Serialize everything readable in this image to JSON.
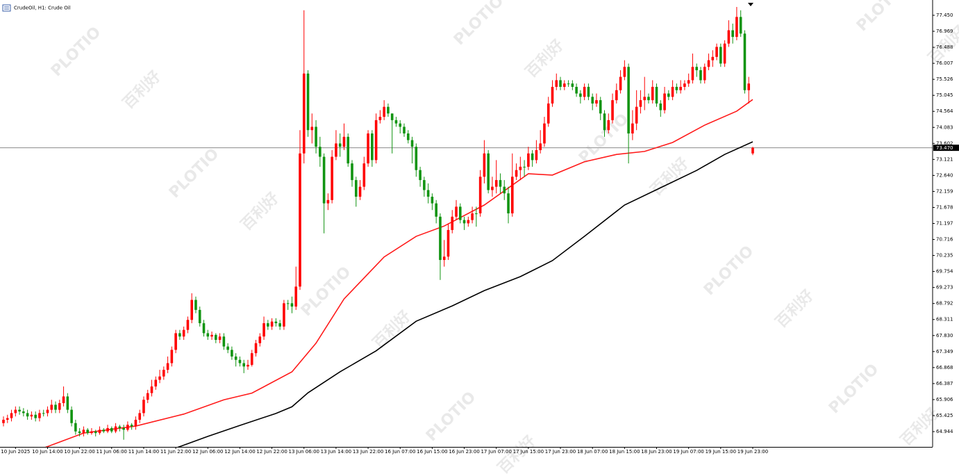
{
  "chart_data": {
    "type": "candlestick",
    "symbol_label": "CrudeOil, H1:  Crude Oil",
    "watermark": [
      "PLOTIO",
      "百利好"
    ],
    "up_color": "#ff0000",
    "down_color": "#119411",
    "ylim": [
      64.485,
      77.909
    ],
    "yticks": [
      {
        "value": 77.45,
        "label": "77.450"
      },
      76.969,
      76.488,
      76.007,
      75.526,
      75.045,
      74.564,
      74.083,
      73.602,
      73.121,
      {
        "value": 72.64,
        "label": "72.640"
      },
      72.159,
      71.678,
      71.197,
      70.716,
      70.235,
      69.754,
      69.273,
      68.792,
      68.311,
      {
        "value": 67.83,
        "label": "67.830"
      },
      67.349,
      66.868,
      66.387,
      65.906,
      65.425,
      64.944
    ],
    "last_price": {
      "value": 73.47,
      "label": "73.470"
    },
    "categories": [
      null,
      null,
      null,
      "10 Jun 2025",
      null,
      null,
      null,
      null,
      null,
      null,
      null,
      "10 Jun 14:00",
      null,
      null,
      null,
      null,
      null,
      null,
      null,
      "10 Jun 22:00",
      null,
      null,
      null,
      null,
      null,
      null,
      null,
      "11 Jun 06:00",
      null,
      null,
      null,
      null,
      null,
      null,
      null,
      "11 Jun 14:00",
      null,
      null,
      null,
      null,
      null,
      null,
      null,
      "11 Jun 22:00",
      null,
      null,
      null,
      null,
      null,
      null,
      null,
      "12 Jun 06:00",
      null,
      null,
      null,
      null,
      null,
      null,
      null,
      "12 Jun 14:00",
      null,
      null,
      null,
      null,
      null,
      null,
      null,
      "12 Jun 22:00",
      null,
      null,
      null,
      null,
      null,
      null,
      null,
      "13 Jun 06:00",
      null,
      null,
      null,
      null,
      null,
      null,
      null,
      "13 Jun 14:00",
      null,
      null,
      null,
      null,
      null,
      null,
      null,
      "13 Jun 22:00",
      null,
      null,
      null,
      null,
      null,
      null,
      null,
      "16 Jun 07:00",
      null,
      null,
      null,
      null,
      null,
      null,
      null,
      "16 Jun 15:00",
      null,
      null,
      null,
      null,
      null,
      null,
      null,
      "16 Jun 23:00",
      null,
      null,
      null,
      null,
      null,
      null,
      null,
      "17 Jun 07:00",
      null,
      null,
      null,
      null,
      null,
      null,
      null,
      "17 Jun 15:00",
      null,
      null,
      null,
      null,
      null,
      null,
      null,
      "17 Jun 23:00",
      null,
      null,
      null,
      null,
      null,
      null,
      null,
      "18 Jun 07:00",
      null,
      null,
      null,
      null,
      null,
      null,
      null,
      "18 Jun 15:00",
      null,
      null,
      null,
      null,
      null,
      null,
      null,
      "18 Jun 23:00",
      null,
      null,
      null,
      null,
      null,
      null,
      null,
      "19 Jun 07:00",
      null,
      null,
      null,
      null,
      null,
      null,
      null,
      "19 Jun 15:00",
      null,
      null,
      null,
      null,
      null,
      null,
      null,
      "19 Jun 23:00"
    ],
    "open": [
      65.2,
      65.3,
      65.35,
      65.5,
      65.6,
      65.55,
      65.5,
      65.4,
      65.45,
      65.35,
      65.5,
      65.5,
      65.6,
      65.75,
      65.6,
      65.8,
      66.0,
      65.6,
      65.2,
      64.95,
      64.9,
      65.0,
      64.9,
      64.95,
      64.9,
      65.0,
      64.95,
      65.05,
      64.95,
      65.1,
      65.05,
      65.0,
      65.15,
      65.1,
      65.3,
      65.5,
      65.9,
      66.1,
      66.3,
      66.5,
      66.6,
      66.8,
      67.0,
      67.4,
      67.9,
      67.8,
      68.0,
      68.3,
      68.9,
      68.6,
      68.2,
      67.9,
      67.8,
      67.85,
      67.7,
      67.8,
      67.5,
      67.4,
      67.2,
      67.1,
      67.0,
      66.9,
      66.95,
      67.3,
      67.6,
      67.8,
      68.2,
      68.1,
      68.25,
      68.2,
      68.1,
      68.8,
      68.8,
      68.7,
      69.3,
      73.3,
      75.7,
      74.0,
      74.1,
      73.5,
      73.2,
      71.8,
      71.9,
      73.2,
      73.6,
      73.5,
      73.8,
      73.0,
      72.5,
      72.0,
      72.3,
      73.0,
      73.9,
      73.1,
      74.3,
      74.4,
      74.7,
      74.5,
      74.3,
      74.2,
      74.1,
      73.9,
      73.7,
      73.5,
      72.8,
      72.5,
      72.2,
      72.0,
      71.8,
      71.4,
      70.1,
      70.2,
      71.0,
      71.4,
      71.7,
      71.3,
      71.2,
      71.3,
      71.5,
      71.5,
      72.6,
      73.3,
      72.2,
      72.3,
      72.5,
      72.3,
      72.1,
      71.5,
      72.6,
      72.8,
      72.9,
      72.9,
      73.3,
      73.1,
      73.4,
      73.6,
      74.2,
      74.8,
      75.3,
      75.5,
      75.3,
      75.4,
      75.4,
      75.3,
      75.1,
      75.0,
      75.3,
      75.0,
      74.8,
      74.9,
      74.5,
      74.0,
      74.3,
      74.9,
      75.2,
      75.6,
      75.9,
      73.9,
      74.2,
      74.7,
      74.9,
      75.0,
      74.9,
      75.3,
      74.8,
      74.6,
      75.1,
      75.0,
      75.3,
      75.2,
      75.3,
      75.4,
      75.5,
      75.9,
      75.8,
      75.5,
      75.9,
      76.1,
      76.2,
      76.5,
      76.0,
      76.6,
      77.0,
      76.8,
      77.4,
      76.9,
      75.2,
      73.3
    ],
    "high": [
      65.4,
      65.45,
      65.6,
      65.7,
      65.7,
      65.65,
      65.6,
      65.55,
      65.55,
      65.6,
      65.6,
      65.7,
      65.9,
      65.85,
      65.9,
      66.3,
      66.1,
      65.7,
      65.3,
      65.05,
      65.1,
      65.05,
      65.05,
      65.0,
      65.1,
      65.05,
      65.15,
      65.1,
      65.2,
      65.15,
      65.15,
      65.25,
      65.2,
      65.4,
      65.6,
      66.0,
      66.2,
      66.5,
      66.6,
      66.8,
      66.9,
      67.2,
      67.5,
      68.0,
      68.0,
      68.1,
      68.4,
      69.1,
      69.0,
      68.7,
      68.3,
      68.0,
      67.95,
      67.9,
      67.9,
      67.9,
      67.6,
      67.5,
      67.3,
      67.2,
      67.1,
      67.1,
      67.4,
      67.7,
      67.9,
      68.4,
      68.3,
      68.35,
      68.35,
      68.3,
      68.9,
      68.9,
      69.0,
      69.9,
      74.0,
      77.6,
      75.8,
      74.5,
      74.3,
      73.8,
      73.3,
      72.1,
      73.4,
      74.0,
      73.9,
      74.2,
      73.9,
      73.1,
      72.6,
      72.5,
      73.2,
      74.0,
      74.0,
      74.5,
      74.6,
      74.9,
      74.8,
      74.5,
      74.4,
      74.3,
      74.2,
      74.0,
      73.8,
      73.6,
      72.9,
      72.6,
      72.4,
      72.1,
      71.9,
      71.5,
      70.7,
      71.2,
      71.6,
      71.9,
      71.8,
      71.4,
      71.4,
      71.7,
      71.7,
      72.8,
      73.7,
      73.4,
      72.6,
      73.1,
      72.7,
      72.5,
      72.3,
      73.3,
      73.0,
      73.2,
      73.1,
      73.5,
      73.4,
      73.7,
      74.0,
      74.4,
      75.0,
      75.5,
      75.7,
      75.6,
      75.5,
      75.5,
      75.5,
      75.4,
      75.2,
      75.4,
      75.4,
      75.1,
      75.1,
      75.0,
      74.6,
      74.5,
      75.1,
      75.4,
      75.8,
      76.1,
      76.0,
      74.6,
      75.2,
      75.2,
      75.6,
      75.1,
      75.5,
      75.4,
      74.9,
      75.3,
      75.2,
      75.5,
      75.4,
      75.5,
      75.5,
      75.7,
      76.3,
      76.0,
      75.9,
      76.0,
      76.3,
      76.4,
      76.6,
      76.6,
      76.7,
      77.3,
      77.2,
      77.7,
      77.6,
      77.0,
      75.6,
      73.5
    ],
    "low": [
      65.1,
      65.2,
      65.25,
      65.4,
      65.45,
      65.4,
      65.3,
      65.3,
      65.25,
      65.25,
      65.4,
      65.4,
      65.5,
      65.5,
      65.5,
      65.7,
      65.5,
      65.1,
      64.85,
      64.8,
      64.8,
      64.85,
      64.85,
      64.8,
      64.85,
      64.9,
      64.9,
      64.9,
      64.9,
      64.95,
      64.7,
      64.95,
      65.0,
      65.0,
      65.2,
      65.4,
      65.8,
      66.0,
      66.2,
      66.4,
      66.5,
      66.7,
      66.9,
      67.3,
      67.7,
      67.7,
      67.9,
      68.2,
      68.5,
      68.1,
      67.8,
      67.7,
      67.7,
      67.6,
      67.6,
      67.4,
      67.3,
      67.1,
      66.9,
      66.9,
      66.7,
      66.8,
      66.9,
      67.2,
      67.5,
      67.7,
      68.0,
      68.0,
      68.1,
      68.0,
      68.0,
      68.6,
      68.5,
      68.6,
      69.2,
      73.0,
      73.8,
      73.6,
      73.3,
      72.9,
      70.9,
      71.6,
      71.8,
      73.1,
      73.2,
      73.4,
      72.9,
      72.3,
      71.7,
      71.9,
      72.2,
      72.9,
      72.9,
      73.0,
      74.2,
      74.3,
      74.4,
      73.3,
      74.1,
      73.9,
      73.8,
      73.6,
      73.0,
      72.6,
      72.3,
      72.0,
      71.8,
      71.6,
      71.2,
      69.5,
      69.9,
      70.1,
      70.9,
      71.3,
      71.2,
      71.0,
      71.1,
      71.2,
      71.1,
      71.4,
      72.4,
      72.1,
      72.0,
      72.1,
      72.1,
      71.9,
      71.2,
      71.4,
      72.5,
      72.5,
      72.6,
      72.8,
      72.9,
      73.0,
      73.3,
      73.5,
      74.1,
      74.7,
      75.2,
      75.2,
      75.2,
      75.3,
      75.2,
      75.0,
      74.8,
      74.9,
      74.9,
      74.6,
      74.7,
      74.3,
      73.8,
      73.9,
      74.2,
      74.8,
      75.1,
      75.5,
      73.0,
      73.7,
      74.0,
      74.5,
      74.6,
      74.8,
      74.8,
      74.7,
      74.4,
      74.5,
      74.9,
      74.9,
      75.1,
      75.1,
      75.2,
      75.3,
      75.4,
      75.6,
      75.4,
      75.4,
      75.8,
      75.9,
      76.1,
      75.9,
      75.9,
      76.5,
      76.6,
      76.7,
      76.8,
      75.1,
      74.8,
      73.25
    ],
    "close": [
      65.3,
      65.35,
      65.5,
      65.6,
      65.55,
      65.5,
      65.4,
      65.45,
      65.35,
      65.5,
      65.5,
      65.6,
      65.75,
      65.6,
      65.8,
      66.0,
      65.6,
      65.2,
      64.95,
      64.9,
      65.0,
      64.9,
      64.95,
      64.9,
      65.0,
      64.95,
      65.05,
      64.95,
      65.1,
      65.05,
      65.0,
      65.15,
      65.1,
      65.3,
      65.5,
      65.9,
      66.1,
      66.3,
      66.5,
      66.6,
      66.8,
      67.0,
      67.4,
      67.9,
      67.8,
      68.0,
      68.3,
      68.9,
      68.6,
      68.2,
      67.9,
      67.8,
      67.85,
      67.7,
      67.8,
      67.5,
      67.4,
      67.2,
      67.1,
      67.0,
      66.9,
      66.95,
      67.3,
      67.6,
      67.8,
      68.2,
      68.1,
      68.25,
      68.2,
      68.1,
      68.8,
      68.8,
      68.7,
      69.3,
      73.3,
      75.7,
      74.0,
      74.1,
      73.5,
      73.2,
      71.8,
      71.9,
      73.2,
      73.6,
      73.5,
      73.8,
      73.0,
      72.5,
      72.0,
      72.3,
      73.0,
      73.9,
      73.1,
      74.3,
      74.4,
      74.7,
      74.5,
      74.3,
      74.2,
      74.1,
      73.9,
      73.7,
      73.5,
      72.8,
      72.5,
      72.2,
      72.0,
      71.8,
      71.4,
      70.1,
      70.2,
      71.0,
      71.4,
      71.7,
      71.3,
      71.2,
      71.3,
      71.5,
      71.5,
      72.6,
      73.3,
      72.2,
      72.3,
      72.5,
      72.3,
      72.1,
      71.5,
      72.6,
      72.8,
      72.9,
      72.9,
      73.3,
      73.1,
      73.4,
      73.6,
      74.2,
      74.8,
      75.3,
      75.5,
      75.3,
      75.4,
      75.4,
      75.3,
      75.1,
      75.0,
      75.3,
      75.0,
      74.8,
      74.9,
      74.5,
      74.0,
      74.3,
      74.9,
      75.2,
      75.6,
      75.9,
      73.9,
      74.2,
      74.7,
      74.9,
      75.0,
      74.9,
      75.3,
      74.8,
      74.6,
      75.1,
      75.0,
      75.3,
      75.2,
      75.3,
      75.4,
      75.5,
      75.9,
      75.8,
      75.5,
      75.9,
      76.1,
      76.2,
      76.5,
      76.0,
      76.6,
      77.0,
      76.8,
      77.4,
      76.9,
      75.2,
      75.4,
      73.47
    ],
    "lines": [
      {
        "color": "#ff1a1a",
        "x": [
          10,
          20,
          33,
          45,
          55,
          62,
          72,
          78,
          85,
          95,
          103,
          110,
          120,
          131,
          137,
          145,
          153,
          160,
          167,
          175,
          183,
          187
        ],
        "values": [
          64.45,
          64.9,
          65.11,
          65.47,
          65.9,
          66.1,
          66.74,
          67.6,
          68.93,
          70.19,
          70.81,
          71.12,
          71.75,
          72.69,
          72.65,
          73.05,
          73.27,
          73.36,
          73.63,
          74.15,
          74.57,
          74.92
        ]
      },
      {
        "color": "#000000",
        "x": [
          43,
          51,
          59,
          68,
          72,
          76,
          84,
          93,
          103,
          112,
          120,
          129,
          137,
          145,
          155,
          164,
          173,
          180,
          187
        ],
        "values": [
          64.45,
          64.8,
          65.13,
          65.49,
          65.69,
          66.11,
          66.74,
          67.37,
          68.26,
          68.72,
          69.18,
          69.6,
          70.08,
          70.81,
          71.75,
          72.27,
          72.79,
          73.27,
          73.65
        ]
      }
    ]
  }
}
